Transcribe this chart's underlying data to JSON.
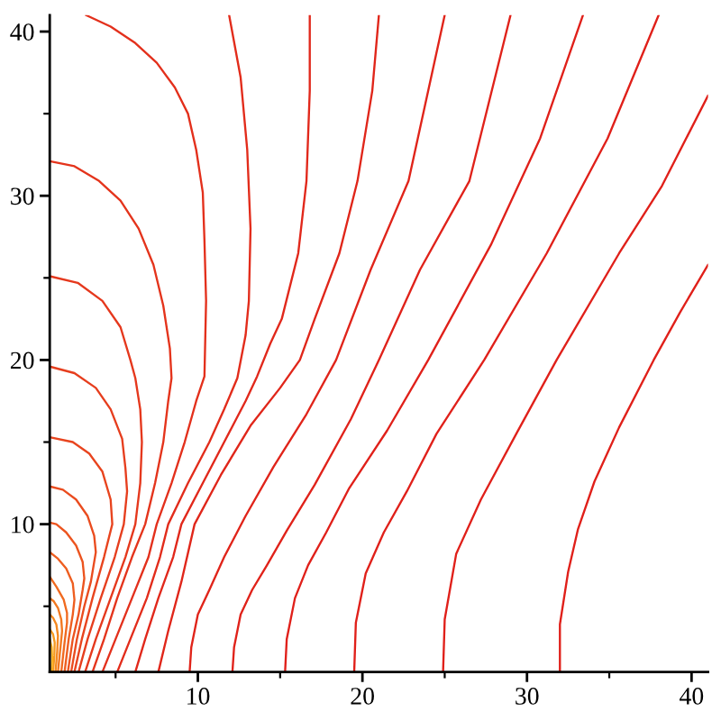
{
  "chart_data": {
    "type": "line",
    "xlim": [
      1,
      41
    ],
    "ylim": [
      1,
      41
    ],
    "xticks": [
      {
        "value": 5,
        "label": null
      },
      10,
      {
        "value": 15,
        "label": null
      },
      20,
      {
        "value": 25,
        "label": null
      },
      30,
      {
        "value": 35,
        "label": null
      },
      40
    ],
    "yticks": [
      {
        "value": 5,
        "label": null
      },
      10,
      {
        "value": 15,
        "label": null
      },
      20,
      {
        "value": 25,
        "label": null
      },
      30,
      {
        "value": 35,
        "label": null
      },
      40
    ],
    "line_style": "solid",
    "series": [
      {
        "color": "#e0201a",
        "x": [
          32,
          32,
          32.5,
          33.1,
          34.1,
          35.6,
          37.7,
          39.3,
          41
        ],
        "values": [
          1,
          3.9,
          7.1,
          9.7,
          12.6,
          15.9,
          20,
          22.9,
          25.8
        ]
      },
      {
        "color": "#e0201a",
        "x": [
          24.9,
          25.0,
          25.7,
          27.2,
          29.4,
          31.8,
          35.6,
          38.2,
          41
        ],
        "values": [
          1,
          4.2,
          8.2,
          11.5,
          15.6,
          20,
          26.5,
          30.6,
          36.1
        ]
      },
      {
        "color": "#e0201a",
        "x": [
          19.5,
          19.6,
          20.2,
          21.3,
          22.7,
          24.5,
          27.4,
          31.2,
          34.9,
          38.0
        ],
        "values": [
          1,
          4,
          7,
          9.5,
          12,
          15.5,
          20,
          26.5,
          33.5,
          41
        ]
      },
      {
        "color": "#e0201a",
        "x": [
          15.3,
          15.4,
          15.9,
          16.7,
          17.8,
          19.2,
          21.5,
          24.0,
          27.8,
          30.8,
          33.4
        ],
        "values": [
          1,
          3,
          5.5,
          7.5,
          9.5,
          12.2,
          15.7,
          20,
          27,
          33.5,
          41
        ]
      },
      {
        "color": "#e0221a",
        "x": [
          12.1,
          12.2,
          12.6,
          13.3,
          14.2,
          15.4,
          17.1,
          19.3,
          21.0,
          23.5,
          26.5,
          29.0
        ],
        "values": [
          1,
          2.5,
          4.5,
          6,
          7.5,
          9.6,
          12.4,
          16.4,
          20,
          25.5,
          30.9,
          41
        ]
      },
      {
        "color": "#e0241a",
        "x": [
          9.5,
          9.6,
          10.0,
          10.7,
          11.6,
          12.9,
          14.6,
          16.6,
          18.4,
          20.5,
          22.8,
          25.0
        ],
        "values": [
          1,
          2.5,
          4.5,
          6,
          8,
          10.5,
          13.5,
          16.7,
          20,
          25.5,
          30.9,
          41
        ]
      },
      {
        "color": "#e0261a",
        "x": [
          7.6,
          8.2,
          9.0,
          9.8,
          11.4,
          13.2,
          15.0,
          16.2,
          17.1,
          18.6,
          19.7,
          20.6,
          21.0
        ],
        "values": [
          1,
          3.5,
          6.5,
          10,
          13,
          16,
          18.3,
          20,
          22.5,
          26.5,
          30.9,
          36.4,
          41
        ]
      },
      {
        "color": "#e1281b",
        "x": [
          6.2,
          6.8,
          7.6,
          8.5,
          9.0,
          10.3,
          11.6,
          12.9,
          13.6,
          14.4,
          15.1,
          16.1,
          16.6,
          16.8,
          16.8
        ],
        "values": [
          1,
          3,
          5.5,
          8,
          10,
          12.5,
          15,
          17.5,
          19,
          21,
          22.5,
          26.5,
          30.9,
          36.4,
          41
        ]
      },
      {
        "color": "#e22c1b",
        "x": [
          5.1,
          5.9,
          6.9,
          7.7,
          8.2,
          9.4,
          10.7,
          11.6,
          12.4,
          12.9,
          13.1,
          13.2,
          13.0,
          12.6,
          11.9
        ],
        "values": [
          1,
          3,
          5.5,
          8,
          10,
          12.5,
          15,
          17,
          18.9,
          21.5,
          23.6,
          28,
          32.8,
          37.2,
          41
        ]
      },
      {
        "color": "#e3301c",
        "x": [
          4.2,
          5.0,
          6.0,
          7.0,
          7.5,
          8.4,
          9.2,
          9.9,
          10.4,
          10.5,
          10.4,
          10.3,
          9.9,
          9.4,
          8.6,
          7.5,
          6.2,
          4.7,
          3.2
        ],
        "values": [
          1,
          3,
          5.5,
          8,
          10,
          12.5,
          15,
          17.5,
          19,
          23.6,
          27.3,
          30.2,
          32.8,
          35,
          36.6,
          38.1,
          39.3,
          40.3,
          41
        ]
      },
      {
        "color": "#e4341c",
        "x": [
          3.6,
          4.3,
          5.1,
          6.0,
          6.8,
          7.4,
          7.9,
          8.2,
          8.4,
          8.3,
          7.9,
          7.3,
          6.4,
          5.3,
          4.0,
          2.5,
          1
        ],
        "values": [
          1,
          3,
          5.5,
          8,
          10,
          12.5,
          15,
          17.5,
          18.9,
          20.7,
          23.3,
          25.8,
          28,
          29.7,
          30.9,
          31.8,
          32.1
        ]
      },
      {
        "color": "#e5381d",
        "x": [
          3.15,
          3.8,
          4.7,
          5.6,
          6.2,
          6.5,
          6.6,
          6.5,
          6.2,
          5.9,
          5.3,
          4.2,
          2.7,
          1
        ],
        "values": [
          1,
          3,
          5.5,
          8,
          10,
          12.5,
          15,
          17,
          18.9,
          20,
          22,
          23.6,
          24.7,
          25.1
        ]
      },
      {
        "color": "#e63e1e",
        "x": [
          2.75,
          3.3,
          4.1,
          4.95,
          5.5,
          5.7,
          5.6,
          5.4,
          4.7,
          3.8,
          2.5,
          1
        ],
        "values": [
          1,
          3,
          5.5,
          8,
          10,
          12,
          13.4,
          15.2,
          17,
          18.3,
          19.2,
          19.6
        ]
      },
      {
        "color": "#e8441e",
        "x": [
          2.5,
          2.95,
          3.6,
          4.3,
          4.8,
          4.7,
          4.2,
          3.4,
          2.4,
          1
        ],
        "values": [
          1,
          3,
          5.5,
          8,
          10,
          11.5,
          13.2,
          14.3,
          15,
          15.3
        ]
      },
      {
        "color": "#ea4c1f",
        "x": [
          2.3,
          2.65,
          3.1,
          3.5,
          3.8,
          3.7,
          3.3,
          2.6,
          1.8,
          1
        ],
        "values": [
          1,
          3,
          5,
          6.5,
          8.3,
          9.3,
          10.5,
          11.5,
          12.1,
          12.3
        ]
      },
      {
        "color": "#ec541f",
        "x": [
          2.1,
          2.4,
          2.75,
          3.0,
          3.1,
          3.0,
          2.6,
          2.0,
          1.4,
          1
        ],
        "values": [
          1,
          3,
          4.5,
          6,
          6.7,
          7.7,
          8.7,
          9.5,
          10,
          10.1
        ]
      },
      {
        "color": "#ee5e20",
        "x": [
          1.9,
          2.15,
          2.4,
          2.5,
          2.4,
          2.0,
          1.5,
          1
        ],
        "values": [
          1,
          3,
          4.5,
          5.4,
          6.4,
          7.3,
          7.9,
          8.3
        ]
      },
      {
        "color": "#f06a20",
        "x": [
          1.7,
          1.9,
          2.05,
          2.05,
          1.85,
          1.4,
          1
        ],
        "values": [
          1,
          2.8,
          4,
          4.6,
          5.4,
          6.2,
          6.8
        ]
      },
      {
        "color": "#f27820",
        "x": [
          1.5,
          1.65,
          1.75,
          1.7,
          1.5,
          1.25,
          1
        ],
        "values": [
          1,
          2.5,
          3.5,
          4.2,
          4.9,
          5.3,
          5.5
        ]
      },
      {
        "color": "#f48820",
        "x": [
          1.35,
          1.45,
          1.5,
          1.4,
          1.2,
          1
        ],
        "values": [
          1,
          2.2,
          3.2,
          3.9,
          4.3,
          4.5
        ]
      },
      {
        "color": "#f69a20",
        "x": [
          1.2,
          1.28,
          1.3,
          1.2,
          1
        ],
        "values": [
          1,
          2,
          2.8,
          3.3,
          3.6
        ]
      },
      {
        "color": "#f8b020",
        "x": [
          1.1,
          1.15,
          1.12,
          1
        ],
        "values": [
          1,
          1.8,
          2.5,
          3
        ]
      }
    ]
  }
}
